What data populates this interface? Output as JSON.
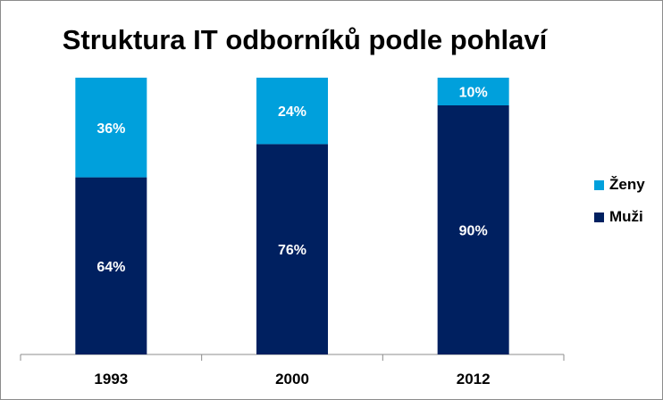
{
  "chart_data": {
    "type": "bar",
    "stacked": true,
    "percent": true,
    "title": "Struktura IT odborníků podle pohlaví",
    "categories": [
      "1993",
      "2000",
      "2012"
    ],
    "series": [
      {
        "name": "Muži",
        "values": [
          64,
          76,
          90
        ],
        "color": "#002060"
      },
      {
        "name": "Ženy",
        "values": [
          36,
          24,
          10
        ],
        "color": "#00A0DC"
      }
    ],
    "ylim": [
      0,
      100
    ],
    "grid": false,
    "legend_position": "right",
    "labels_suffix": "%",
    "label_color": "#ffffff"
  }
}
